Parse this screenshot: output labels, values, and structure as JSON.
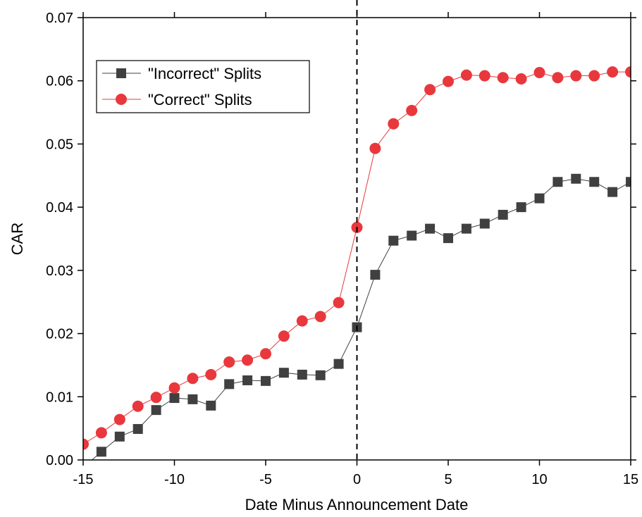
{
  "chart_data": {
    "type": "line",
    "x_label": "Date Minus Announcement Date",
    "y_label": "CAR",
    "x": [
      -15,
      -14,
      -13,
      -12,
      -11,
      -10,
      -9,
      -8,
      -7,
      -6,
      -5,
      -4,
      -3,
      -2,
      -1,
      0,
      1,
      2,
      3,
      4,
      5,
      6,
      7,
      8,
      9,
      10,
      11,
      12,
      13,
      14,
      15
    ],
    "series": [
      {
        "name": "\"Incorrect\" Splits",
        "color": "#404040",
        "marker": "square",
        "values": [
          -0.0012,
          0.0013,
          0.0037,
          0.0049,
          0.0079,
          0.0098,
          0.0096,
          0.0086,
          0.012,
          0.0126,
          0.0125,
          0.0138,
          0.0135,
          0.0134,
          0.0152,
          0.021,
          0.0293,
          0.0347,
          0.0355,
          0.0366,
          0.0351,
          0.0366,
          0.0374,
          0.0388,
          0.04,
          0.0414,
          0.044,
          0.0445,
          0.044,
          0.0424,
          0.044
        ]
      },
      {
        "name": "\"Correct\" Splits",
        "color": "#e8383d",
        "marker": "circle",
        "values": [
          0.0025,
          0.0043,
          0.0064,
          0.0085,
          0.0099,
          0.0114,
          0.0129,
          0.0135,
          0.0155,
          0.0158,
          0.0168,
          0.0196,
          0.022,
          0.0227,
          0.0249,
          0.0368,
          0.0493,
          0.0532,
          0.0553,
          0.0586,
          0.0599,
          0.0609,
          0.0608,
          0.0605,
          0.0603,
          0.0613,
          0.0605,
          0.0608,
          0.0608,
          0.0614,
          0.0614
        ]
      }
    ],
    "xlim": [
      -15,
      15
    ],
    "xticks": [
      -15,
      -10,
      -5,
      0,
      5,
      10,
      15
    ],
    "ylim": [
      0,
      0.07
    ],
    "yticks": [
      {
        "value": 0,
        "label": "0.00"
      },
      {
        "value": 0.01,
        "label": "0.01"
      },
      {
        "value": 0.02,
        "label": "0.02"
      },
      {
        "value": 0.03,
        "label": "0.03"
      },
      {
        "value": 0.04,
        "label": "0.04"
      },
      {
        "value": 0.05,
        "label": "0.05"
      },
      {
        "value": 0.06,
        "label": "0.06"
      },
      0.07
    ],
    "reference_line_x": 0,
    "legend": "upper-left"
  }
}
